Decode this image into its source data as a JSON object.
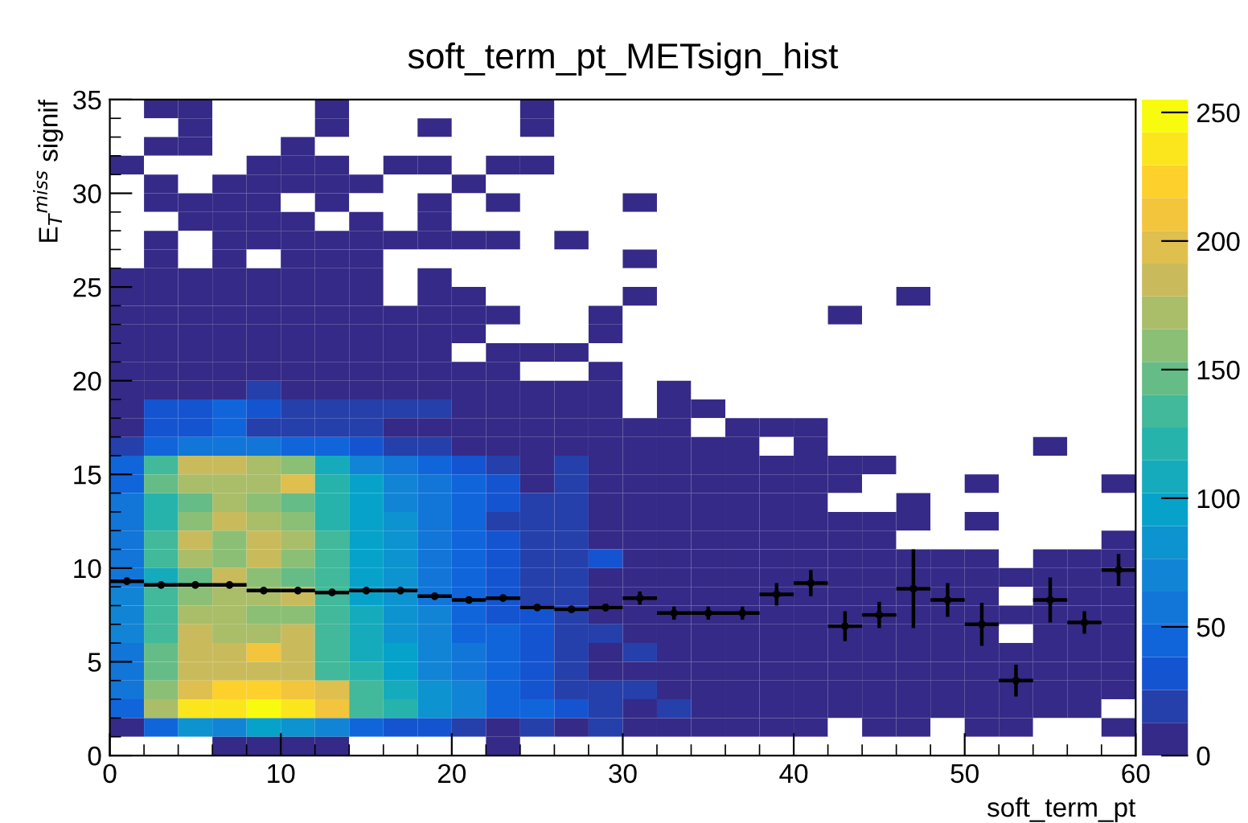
{
  "chart_data": {
    "type": "heatmap",
    "title": "soft_term_pt_METsign_hist",
    "xlabel": "soft_term_pt",
    "ylabel": "E$_{T}$$^{miss}$ signif",
    "x": [
      1,
      3,
      5,
      7,
      9,
      11,
      13,
      15,
      17,
      19,
      21,
      23,
      25,
      27,
      29,
      31,
      33,
      35,
      37,
      39,
      41,
      43,
      45,
      47,
      49,
      51,
      53,
      55,
      57,
      59
    ],
    "y": [
      34.5,
      33.5,
      32.5,
      31.5,
      30.5,
      29.5,
      28.5,
      27.5,
      26.5,
      25.5,
      24.5,
      23.5,
      22.5,
      21.5,
      20.5,
      19.5,
      18.5,
      17.5,
      16.5,
      15.5,
      14.5,
      13.5,
      12.5,
      11.5,
      10.5,
      9.5,
      8.5,
      7.5,
      6.5,
      5.5,
      4.5,
      3.5,
      2.5,
      1.5,
      0.5
    ],
    "xlim": [
      0,
      60
    ],
    "xticks": [
      0,
      10,
      20,
      30,
      40,
      50,
      60
    ],
    "ylim": [
      0,
      35
    ],
    "yticks": [
      0,
      5,
      10,
      15,
      20,
      25,
      30,
      35
    ],
    "clim": [
      0,
      255
    ],
    "cticks": [
      0,
      50,
      100,
      150,
      200,
      250
    ],
    "cells": [
      [
        null,
        2,
        2,
        null,
        null,
        null,
        2,
        null,
        null,
        null,
        null,
        null,
        2,
        null,
        null,
        null,
        null,
        null,
        null,
        null,
        null,
        null,
        null,
        null,
        null,
        null,
        null,
        null,
        null,
        null
      ],
      [
        null,
        null,
        2,
        null,
        null,
        null,
        2,
        null,
        null,
        2,
        null,
        null,
        2,
        null,
        null,
        null,
        null,
        null,
        null,
        null,
        null,
        null,
        null,
        null,
        null,
        null,
        null,
        null,
        null,
        null
      ],
      [
        null,
        2,
        2,
        null,
        null,
        2,
        null,
        null,
        null,
        null,
        null,
        null,
        null,
        null,
        null,
        null,
        null,
        null,
        null,
        null,
        null,
        null,
        null,
        null,
        null,
        null,
        null,
        null,
        null,
        null
      ],
      [
        2,
        null,
        null,
        null,
        2,
        2,
        2,
        null,
        2,
        2,
        null,
        2,
        2,
        null,
        null,
        null,
        null,
        null,
        null,
        null,
        null,
        null,
        null,
        null,
        null,
        null,
        null,
        null,
        null,
        null
      ],
      [
        null,
        2,
        null,
        2,
        2,
        2,
        2,
        2,
        null,
        null,
        2,
        null,
        null,
        null,
        null,
        null,
        null,
        null,
        null,
        null,
        null,
        null,
        null,
        null,
        null,
        null,
        null,
        null,
        null,
        null
      ],
      [
        null,
        2,
        2,
        2,
        2,
        null,
        2,
        null,
        null,
        2,
        null,
        2,
        null,
        null,
        null,
        2,
        null,
        null,
        null,
        null,
        null,
        null,
        null,
        null,
        null,
        null,
        null,
        null,
        null,
        null
      ],
      [
        null,
        null,
        2,
        2,
        2,
        2,
        null,
        2,
        null,
        2,
        null,
        null,
        null,
        null,
        null,
        null,
        null,
        null,
        null,
        null,
        null,
        null,
        null,
        null,
        null,
        null,
        null,
        null,
        null,
        null
      ],
      [
        null,
        3,
        null,
        3,
        3,
        3,
        3,
        3,
        3,
        3,
        3,
        3,
        null,
        2,
        null,
        null,
        null,
        null,
        null,
        null,
        null,
        null,
        null,
        null,
        null,
        null,
        null,
        null,
        null,
        null
      ],
      [
        null,
        3,
        null,
        3,
        null,
        3,
        3,
        3,
        null,
        null,
        null,
        null,
        null,
        null,
        null,
        2,
        null,
        null,
        null,
        null,
        null,
        null,
        null,
        null,
        null,
        null,
        null,
        null,
        null,
        null
      ],
      [
        3,
        3,
        3,
        3,
        3,
        3,
        3,
        3,
        null,
        3,
        null,
        null,
        null,
        null,
        null,
        null,
        null,
        null,
        null,
        null,
        null,
        null,
        null,
        null,
        null,
        null,
        null,
        null,
        null,
        null
      ],
      [
        3,
        3,
        3,
        3,
        3,
        3,
        3,
        3,
        null,
        3,
        3,
        null,
        null,
        null,
        null,
        2,
        null,
        null,
        null,
        null,
        null,
        null,
        null,
        2,
        null,
        null,
        null,
        null,
        null,
        null
      ],
      [
        4,
        4,
        4,
        4,
        4,
        4,
        4,
        4,
        3,
        3,
        3,
        3,
        null,
        null,
        2,
        null,
        null,
        null,
        null,
        null,
        null,
        2,
        null,
        null,
        null,
        null,
        null,
        null,
        null,
        null
      ],
      [
        4,
        4,
        4,
        4,
        4,
        4,
        4,
        4,
        4,
        3,
        3,
        null,
        null,
        null,
        2,
        null,
        null,
        null,
        null,
        null,
        null,
        null,
        null,
        null,
        null,
        null,
        null,
        null,
        null,
        null
      ],
      [
        4,
        5,
        5,
        5,
        5,
        4,
        4,
        4,
        3,
        3,
        null,
        3,
        2,
        2,
        null,
        null,
        null,
        null,
        null,
        null,
        null,
        null,
        null,
        null,
        null,
        null,
        null,
        null,
        null,
        null
      ],
      [
        5,
        6,
        6,
        6,
        8,
        6,
        5,
        5,
        4,
        3,
        3,
        3,
        null,
        null,
        2,
        null,
        null,
        null,
        null,
        null,
        null,
        null,
        null,
        null,
        null,
        null,
        null,
        null,
        null,
        null
      ],
      [
        6,
        8,
        8,
        9,
        20,
        10,
        8,
        6,
        5,
        4,
        4,
        3,
        3,
        3,
        3,
        null,
        2,
        null,
        null,
        null,
        null,
        null,
        null,
        null,
        null,
        null,
        null,
        null,
        null,
        null
      ],
      [
        8,
        30,
        30,
        45,
        30,
        25,
        25,
        20,
        15,
        15,
        8,
        6,
        5,
        4,
        4,
        null,
        3,
        3,
        null,
        null,
        null,
        null,
        null,
        null,
        null,
        null,
        null,
        null,
        null,
        null
      ],
      [
        8,
        30,
        35,
        40,
        25,
        25,
        25,
        20,
        10,
        10,
        8,
        6,
        5,
        5,
        4,
        4,
        3,
        null,
        3,
        3,
        3,
        null,
        null,
        null,
        null,
        null,
        null,
        null,
        null,
        null
      ],
      [
        15,
        40,
        60,
        60,
        55,
        50,
        45,
        30,
        25,
        25,
        12,
        10,
        8,
        6,
        5,
        5,
        4,
        4,
        4,
        null,
        3,
        null,
        null,
        null,
        null,
        null,
        null,
        3,
        null,
        null
      ],
      [
        45,
        140,
        185,
        190,
        175,
        160,
        110,
        70,
        55,
        45,
        35,
        25,
        12,
        20,
        10,
        6,
        5,
        5,
        4,
        4,
        4,
        3,
        3,
        null,
        null,
        null,
        null,
        null,
        null,
        null
      ],
      [
        50,
        150,
        170,
        170,
        175,
        195,
        120,
        90,
        65,
        60,
        45,
        30,
        8,
        25,
        10,
        6,
        5,
        5,
        4,
        4,
        4,
        3,
        null,
        null,
        null,
        3,
        null,
        null,
        null,
        3
      ],
      [
        55,
        120,
        150,
        170,
        160,
        150,
        125,
        95,
        75,
        60,
        45,
        30,
        25,
        25,
        10,
        6,
        5,
        5,
        4,
        4,
        4,
        null,
        null,
        3,
        null,
        null,
        null,
        null,
        null,
        null
      ],
      [
        55,
        120,
        160,
        180,
        170,
        165,
        120,
        100,
        80,
        60,
        40,
        25,
        25,
        20,
        12,
        8,
        6,
        5,
        5,
        4,
        4,
        4,
        3,
        3,
        null,
        3,
        null,
        null,
        null,
        null
      ],
      [
        60,
        130,
        190,
        165,
        185,
        175,
        130,
        100,
        85,
        60,
        40,
        35,
        25,
        25,
        12,
        8,
        6,
        5,
        5,
        4,
        4,
        4,
        3,
        null,
        null,
        null,
        null,
        null,
        null,
        3
      ],
      [
        55,
        140,
        170,
        165,
        180,
        160,
        130,
        100,
        80,
        60,
        45,
        30,
        25,
        20,
        30,
        8,
        6,
        5,
        5,
        4,
        4,
        4,
        4,
        3,
        3,
        3,
        null,
        3,
        3,
        3
      ],
      [
        60,
        110,
        150,
        190,
        165,
        150,
        130,
        95,
        80,
        60,
        45,
        35,
        25,
        20,
        12,
        8,
        6,
        5,
        5,
        4,
        4,
        4,
        4,
        3,
        3,
        3,
        3,
        3,
        3,
        3
      ],
      [
        70,
        140,
        165,
        170,
        170,
        180,
        135,
        100,
        85,
        60,
        50,
        35,
        25,
        20,
        10,
        8,
        6,
        5,
        5,
        4,
        4,
        4,
        4,
        3,
        3,
        3,
        null,
        3,
        3,
        3
      ],
      [
        65,
        140,
        170,
        175,
        165,
        165,
        135,
        110,
        85,
        65,
        50,
        35,
        30,
        25,
        12,
        8,
        6,
        5,
        5,
        4,
        4,
        4,
        4,
        3,
        3,
        3,
        3,
        3,
        3,
        3
      ],
      [
        65,
        140,
        180,
        175,
        175,
        185,
        130,
        110,
        85,
        70,
        50,
        40,
        30,
        25,
        25,
        8,
        6,
        5,
        5,
        4,
        4,
        4,
        4,
        3,
        3,
        3,
        null,
        3,
        3,
        3
      ],
      [
        60,
        145,
        185,
        180,
        215,
        185,
        135,
        110,
        90,
        75,
        55,
        40,
        30,
        20,
        10,
        25,
        6,
        5,
        5,
        4,
        4,
        4,
        4,
        3,
        3,
        3,
        3,
        3,
        3,
        3
      ],
      [
        55,
        150,
        185,
        190,
        190,
        185,
        140,
        115,
        90,
        75,
        55,
        40,
        30,
        25,
        12,
        8,
        6,
        5,
        5,
        4,
        4,
        4,
        4,
        3,
        3,
        3,
        3,
        3,
        3,
        3
      ],
      [
        55,
        160,
        200,
        225,
        225,
        215,
        195,
        140,
        110,
        80,
        65,
        45,
        30,
        20,
        25,
        25,
        8,
        5,
        5,
        4,
        4,
        4,
        4,
        3,
        3,
        3,
        3,
        3,
        3,
        3
      ],
      [
        50,
        170,
        230,
        235,
        255,
        230,
        210,
        140,
        115,
        85,
        70,
        50,
        40,
        30,
        20,
        8,
        25,
        6,
        5,
        4,
        4,
        4,
        4,
        3,
        3,
        3,
        3,
        3,
        3,
        null
      ],
      [
        10,
        50,
        80,
        65,
        90,
        80,
        65,
        40,
        35,
        30,
        25,
        8,
        20,
        8,
        20,
        6,
        5,
        5,
        4,
        4,
        4,
        null,
        3,
        3,
        null,
        3,
        3,
        null,
        null,
        3
      ],
      [
        null,
        null,
        null,
        8,
        6,
        8,
        6,
        null,
        null,
        null,
        null,
        5,
        null,
        null,
        null,
        null,
        null,
        null,
        null,
        null,
        null,
        null,
        null,
        null,
        null,
        null,
        null,
        null,
        null,
        null
      ]
    ],
    "series": [
      {
        "type": "scatter",
        "color": "#000000",
        "x": [
          1,
          3,
          5,
          7,
          9,
          11,
          13,
          15,
          17,
          19,
          21,
          23,
          25,
          27,
          29,
          31,
          33,
          35,
          37,
          39,
          41,
          43,
          45,
          47,
          49,
          51,
          53,
          55,
          57,
          59
        ],
        "values": [
          9.3,
          9.1,
          9.1,
          9.1,
          8.8,
          8.8,
          8.7,
          8.8,
          8.8,
          8.5,
          8.3,
          8.4,
          7.9,
          7.8,
          7.9,
          8.4,
          7.6,
          7.6,
          7.6,
          8.6,
          9.2,
          6.9,
          7.5,
          8.9,
          8.3,
          7.0,
          4.0,
          8.3,
          7.1,
          9.9
        ],
        "errors": [
          0.15,
          0.1,
          0.1,
          0.1,
          0.1,
          0.1,
          0.1,
          0.1,
          0.1,
          0.1,
          0.1,
          0.1,
          0.15,
          0.15,
          0.2,
          0.35,
          0.35,
          0.35,
          0.35,
          0.6,
          0.7,
          0.8,
          0.7,
          2.1,
          0.9,
          1.15,
          0.85,
          1.2,
          0.6,
          0.85
        ],
        "xerrors": [
          1,
          1,
          1,
          1,
          1,
          1,
          1,
          1,
          1,
          1,
          1,
          1,
          1,
          1,
          1,
          1,
          1,
          1,
          1,
          1,
          1,
          1,
          1,
          1,
          1,
          1,
          1,
          1,
          1,
          1
        ]
      }
    ]
  }
}
